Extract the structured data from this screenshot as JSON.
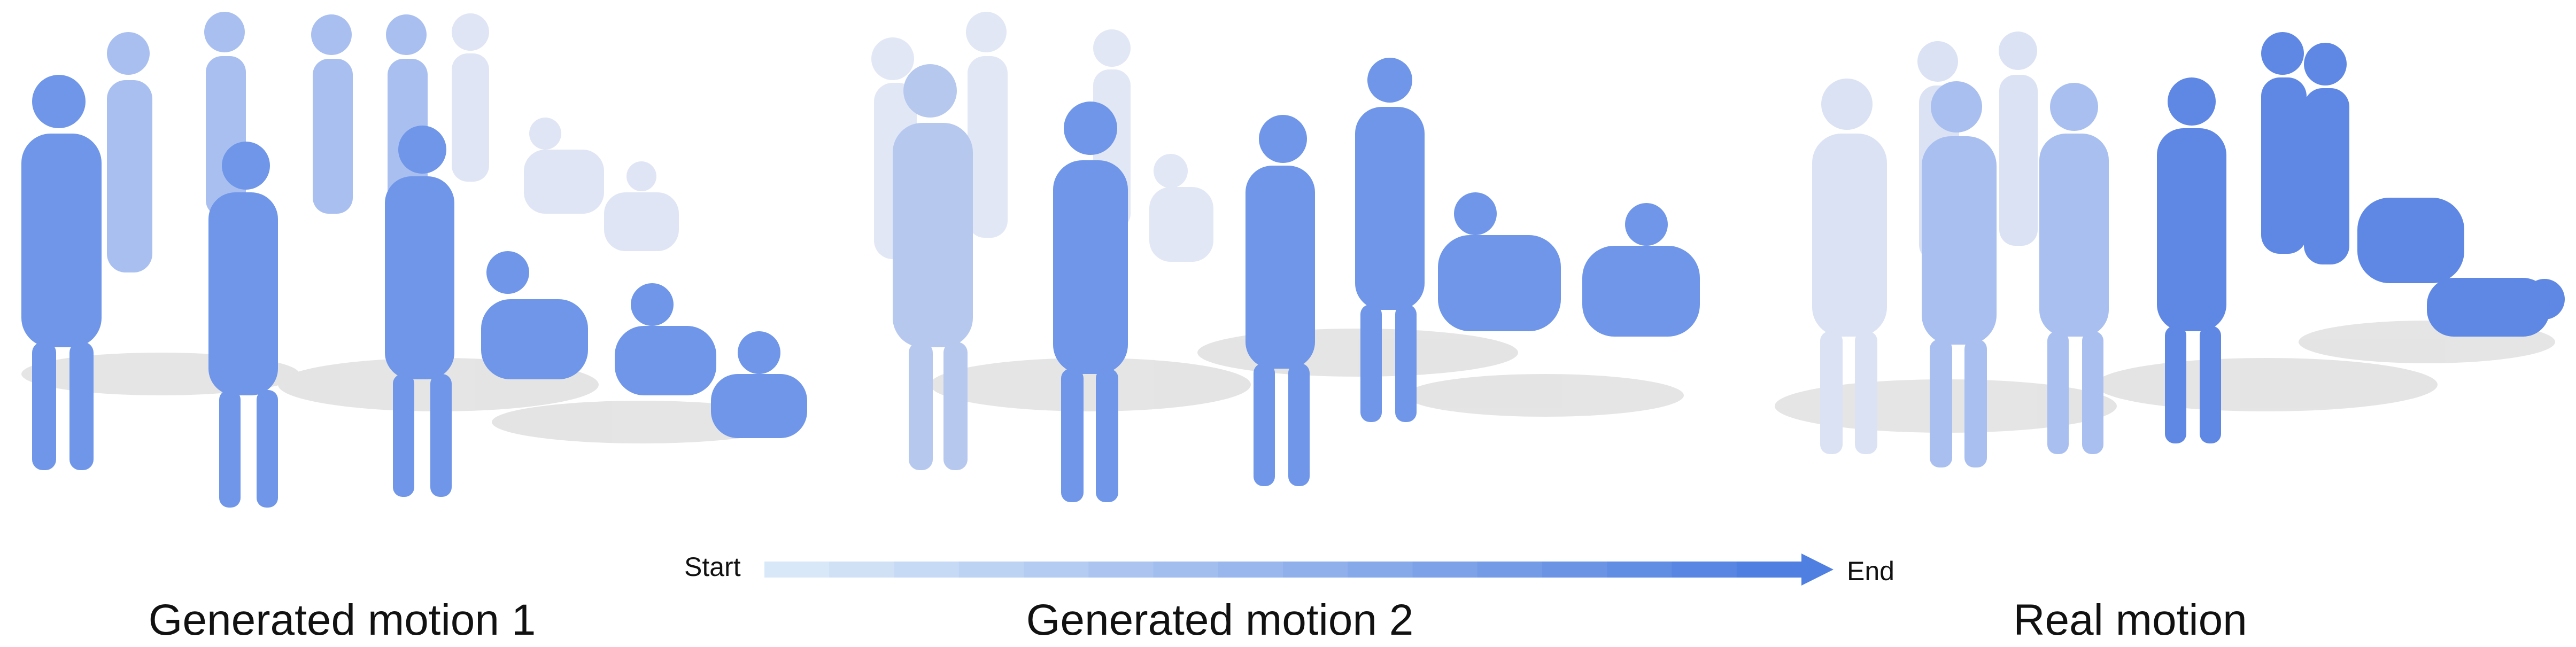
{
  "figure": {
    "panels": [
      {
        "id": "generated-motion-1",
        "caption": "Generated motion 1"
      },
      {
        "id": "generated-motion-2",
        "caption": "Generated motion 2"
      },
      {
        "id": "real-motion",
        "caption": "Real motion"
      }
    ],
    "timeline": {
      "start_label": "Start",
      "end_label": "End",
      "segments": 16,
      "color_start": "#d9e8f8",
      "color_end": "#4f7fe0"
    },
    "colors": {
      "figure_early": "#cdd6ee",
      "figure_late": "#4f7fe0",
      "shadow": "#cfcfcf"
    }
  }
}
